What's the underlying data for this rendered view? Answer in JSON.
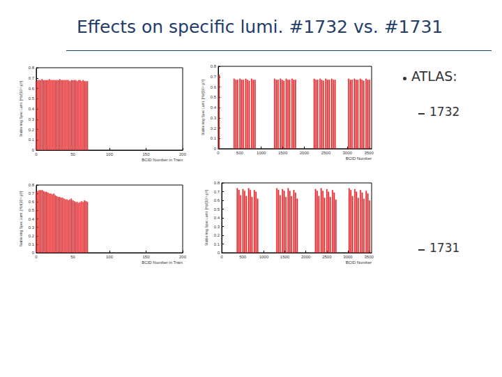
{
  "title": "Effects on specific lumi. #1732 vs. #1731",
  "bullets": [
    {
      "text": "ATLAS:",
      "items": [
        "1732",
        "1731"
      ]
    }
  ],
  "chart_data": [
    {
      "type": "bar",
      "color": "#e8262a",
      "grid": false,
      "xlabel": "BCID Number in Train",
      "ylabel": "Stable ring Spec Lumi. [Hz/(10¹¹ p)²]",
      "x": [
        0,
        2,
        4,
        6,
        8,
        10,
        12,
        14,
        16,
        18,
        20,
        22,
        24,
        26,
        28,
        30,
        32,
        34,
        36,
        38,
        40,
        42,
        44,
        46,
        48,
        50,
        52,
        54,
        56,
        58,
        60,
        62,
        64,
        66,
        68,
        70
      ],
      "values": [
        0.67,
        0.68,
        0.68,
        0.68,
        0.69,
        0.68,
        0.68,
        0.68,
        0.68,
        0.69,
        0.68,
        0.68,
        0.68,
        0.68,
        0.68,
        0.68,
        0.69,
        0.68,
        0.68,
        0.68,
        0.68,
        0.68,
        0.68,
        0.67,
        0.68,
        0.68,
        0.68,
        0.68,
        0.67,
        0.68,
        0.68,
        0.67,
        0.68,
        0.67,
        0.67,
        0.67
      ],
      "xlim": [
        0,
        200
      ],
      "xticks": [
        0,
        50,
        100,
        150,
        200
      ],
      "ylim": [
        0,
        0.8
      ],
      "yticks": [
        0,
        0.1,
        0.2,
        0.3,
        0.4,
        0.5,
        0.6,
        0.7,
        0.8
      ]
    },
    {
      "type": "bar",
      "color": "#e8262a",
      "grid": false,
      "xlabel": "BCID Number",
      "ylabel": "Stable ring Spec Lumi. [Hz/(10¹¹ p)²]",
      "x": [
        20,
        370,
        410,
        450,
        505,
        545,
        585,
        640,
        680,
        720,
        775,
        815,
        855,
        1310,
        1350,
        1390,
        1445,
        1485,
        1525,
        1580,
        1620,
        1660,
        1715,
        1755,
        1795,
        2230,
        2270,
        2310,
        2365,
        2405,
        2445,
        2500,
        2540,
        2580,
        2635,
        2675,
        2715,
        3030,
        3070,
        3110,
        3165,
        3205,
        3245,
        3300,
        3340,
        3380,
        3435,
        3475,
        3515
      ],
      "values": [
        0.72,
        0.68,
        0.67,
        0.67,
        0.68,
        0.67,
        0.67,
        0.68,
        0.67,
        0.66,
        0.68,
        0.67,
        0.67,
        0.68,
        0.67,
        0.67,
        0.68,
        0.67,
        0.66,
        0.68,
        0.67,
        0.67,
        0.68,
        0.67,
        0.67,
        0.68,
        0.67,
        0.67,
        0.68,
        0.67,
        0.66,
        0.68,
        0.67,
        0.67,
        0.68,
        0.67,
        0.67,
        0.68,
        0.67,
        0.67,
        0.68,
        0.67,
        0.67,
        0.68,
        0.67,
        0.66,
        0.68,
        0.67,
        0.67
      ],
      "xlim": [
        0,
        3564
      ],
      "xticks": [
        0,
        500,
        1000,
        1500,
        2000,
        2500,
        3000,
        3500
      ],
      "ylim": [
        0,
        0.8
      ],
      "yticks": [
        0,
        0.1,
        0.2,
        0.3,
        0.4,
        0.5,
        0.6,
        0.7,
        0.8
      ]
    },
    {
      "type": "bar",
      "color": "#e8262a",
      "grid": false,
      "xlabel": "BCID Number in Train",
      "ylabel": "Stable ring Spec Lumi. [Hz/(10¹¹ p)²]",
      "x": [
        0,
        2,
        4,
        6,
        8,
        10,
        12,
        14,
        16,
        18,
        20,
        22,
        24,
        26,
        28,
        30,
        32,
        34,
        36,
        38,
        40,
        42,
        44,
        46,
        48,
        50,
        52,
        54,
        56,
        58,
        60,
        62,
        64,
        66,
        68,
        70
      ],
      "values": [
        0.72,
        0.73,
        0.74,
        0.74,
        0.74,
        0.73,
        0.72,
        0.72,
        0.71,
        0.7,
        0.7,
        0.69,
        0.7,
        0.68,
        0.67,
        0.66,
        0.66,
        0.65,
        0.65,
        0.64,
        0.63,
        0.63,
        0.62,
        0.63,
        0.64,
        0.62,
        0.61,
        0.6,
        0.6,
        0.59,
        0.6,
        0.61,
        0.6,
        0.62,
        0.61,
        0.6
      ],
      "xlim": [
        0,
        200
      ],
      "xticks": [
        0,
        50,
        100,
        150,
        200
      ],
      "ylim": [
        0,
        0.8
      ],
      "yticks": [
        0,
        0.1,
        0.2,
        0.3,
        0.4,
        0.5,
        0.6,
        0.7,
        0.8
      ]
    },
    {
      "type": "bar",
      "color": "#e8262a",
      "grid": false,
      "xlabel": "BCID Number",
      "ylabel": "Stable ring Spec Lumi. [Hz/(10¹¹ p)²]",
      "x": [
        370,
        410,
        450,
        505,
        545,
        585,
        640,
        680,
        720,
        775,
        815,
        855,
        1310,
        1350,
        1390,
        1445,
        1485,
        1525,
        1580,
        1620,
        1660,
        1715,
        1755,
        1795,
        2230,
        2270,
        2310,
        2365,
        2405,
        2445,
        2500,
        2540,
        2580,
        2635,
        2675,
        2715,
        3030,
        3070,
        3110,
        3165,
        3205,
        3245,
        3300,
        3340,
        3380,
        3435,
        3475,
        3515
      ],
      "values": [
        0.74,
        0.72,
        0.66,
        0.73,
        0.71,
        0.65,
        0.74,
        0.72,
        0.64,
        0.72,
        0.7,
        0.62,
        0.74,
        0.72,
        0.66,
        0.73,
        0.71,
        0.64,
        0.74,
        0.71,
        0.65,
        0.72,
        0.69,
        0.62,
        0.73,
        0.71,
        0.65,
        0.74,
        0.71,
        0.63,
        0.73,
        0.7,
        0.64,
        0.72,
        0.69,
        0.61,
        0.74,
        0.72,
        0.65,
        0.73,
        0.7,
        0.63,
        0.72,
        0.69,
        0.62,
        0.71,
        0.68,
        0.6
      ],
      "xlim": [
        0,
        3564
      ],
      "xticks": [
        0,
        500,
        1000,
        1500,
        2000,
        2500,
        3000,
        3500
      ],
      "ylim": [
        0,
        0.8
      ],
      "yticks": [
        0,
        0.1,
        0.2,
        0.3,
        0.4,
        0.5,
        0.6,
        0.7,
        0.8
      ]
    }
  ]
}
